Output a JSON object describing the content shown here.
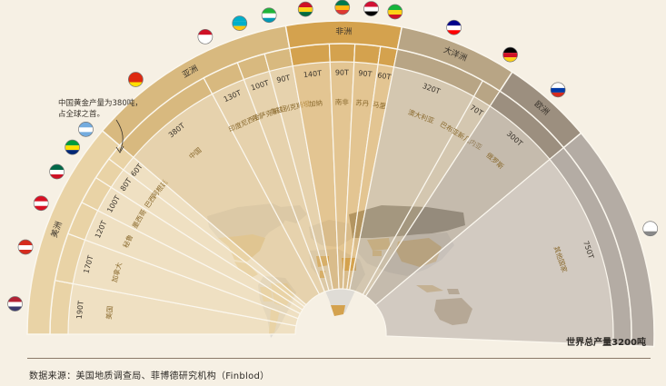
{
  "source_text": "数据来源：美国地质调查局、菲博德研究机构（Finblod）",
  "total_text": "世界总产量3200吨",
  "callout_text": [
    "中国黄金产量为380吨，",
    "占全球之首。"
  ],
  "colors": {
    "americas": "#e9d3a6",
    "asia": "#d8b97f",
    "africa": "#d4a24e",
    "oceania": "#b8a585",
    "russia": "#9c8f7f",
    "other": "#b4aca4",
    "background": "#f6f0e4",
    "map_base": "#dfdcd6",
    "map_russia": "#8c8578"
  },
  "chart_data": {
    "type": "semicircular-bar",
    "title": "",
    "total": 3200,
    "unit": "吨",
    "regions": [
      {
        "key": "americas",
        "name": "美洲",
        "color": "#e9d3a6",
        "countries": [
          {
            "name": "美国",
            "value": 190,
            "label": "190T",
            "flag": "usa-flag"
          },
          {
            "name": "加拿大",
            "value": 170,
            "label": "170T",
            "flag": "canada-flag"
          },
          {
            "name": "秘鲁",
            "value": 120,
            "label": "120T",
            "flag": "peru-flag"
          },
          {
            "name": "墨西哥",
            "value": 100,
            "label": "100T",
            "flag": "mexico-flag"
          },
          {
            "name": "巴西",
            "value": 80,
            "label": "80T",
            "flag": "brazil-flag"
          },
          {
            "name": "阿根廷",
            "value": 60,
            "label": "60T",
            "flag": "argentina-flag"
          }
        ]
      },
      {
        "key": "asia",
        "name": "亚洲",
        "color": "#d8b97f",
        "countries": [
          {
            "name": "中国",
            "value": 380,
            "label": "380T",
            "flag": "china-flag"
          },
          {
            "name": "印度尼西亚",
            "value": 130,
            "label": "130T",
            "flag": "indonesia-flag"
          },
          {
            "name": "哈萨克斯坦",
            "value": 100,
            "label": "100T",
            "flag": "kazakhstan-flag"
          },
          {
            "name": "乌兹别克斯坦",
            "value": 90,
            "label": "90T",
            "flag": "uzbekistan-flag"
          }
        ]
      },
      {
        "key": "africa",
        "name": "非洲",
        "color": "#d4a24e",
        "countries": [
          {
            "name": "加纳",
            "value": 140,
            "label": "140T",
            "flag": "ghana-flag"
          },
          {
            "name": "南非",
            "value": 90,
            "label": "90T",
            "flag": "south-africa-flag"
          },
          {
            "name": "苏丹",
            "value": 90,
            "label": "90T",
            "flag": "sudan-flag"
          },
          {
            "name": "马里",
            "value": 60,
            "label": "60T",
            "flag": "mali-flag"
          }
        ]
      },
      {
        "key": "oceania",
        "name": "大洋洲",
        "color": "#b8a585",
        "countries": [
          {
            "name": "澳大利亚",
            "value": 320,
            "label": "320T",
            "flag": "australia-flag"
          },
          {
            "name": "巴布亚新几内亚",
            "value": 70,
            "label": "70T",
            "flag": "png-flag"
          }
        ]
      },
      {
        "key": "russia",
        "name": "欧洲",
        "color": "#9c8f7f",
        "countries": [
          {
            "name": "俄罗斯",
            "value": 300,
            "label": "300T",
            "flag": "russia-flag"
          }
        ]
      },
      {
        "key": "other",
        "name": "",
        "color": "#b4aca4",
        "countries": [
          {
            "name": "其他国家",
            "value": 750,
            "label": "750T",
            "flag": "globe-icon"
          }
        ]
      }
    ]
  }
}
